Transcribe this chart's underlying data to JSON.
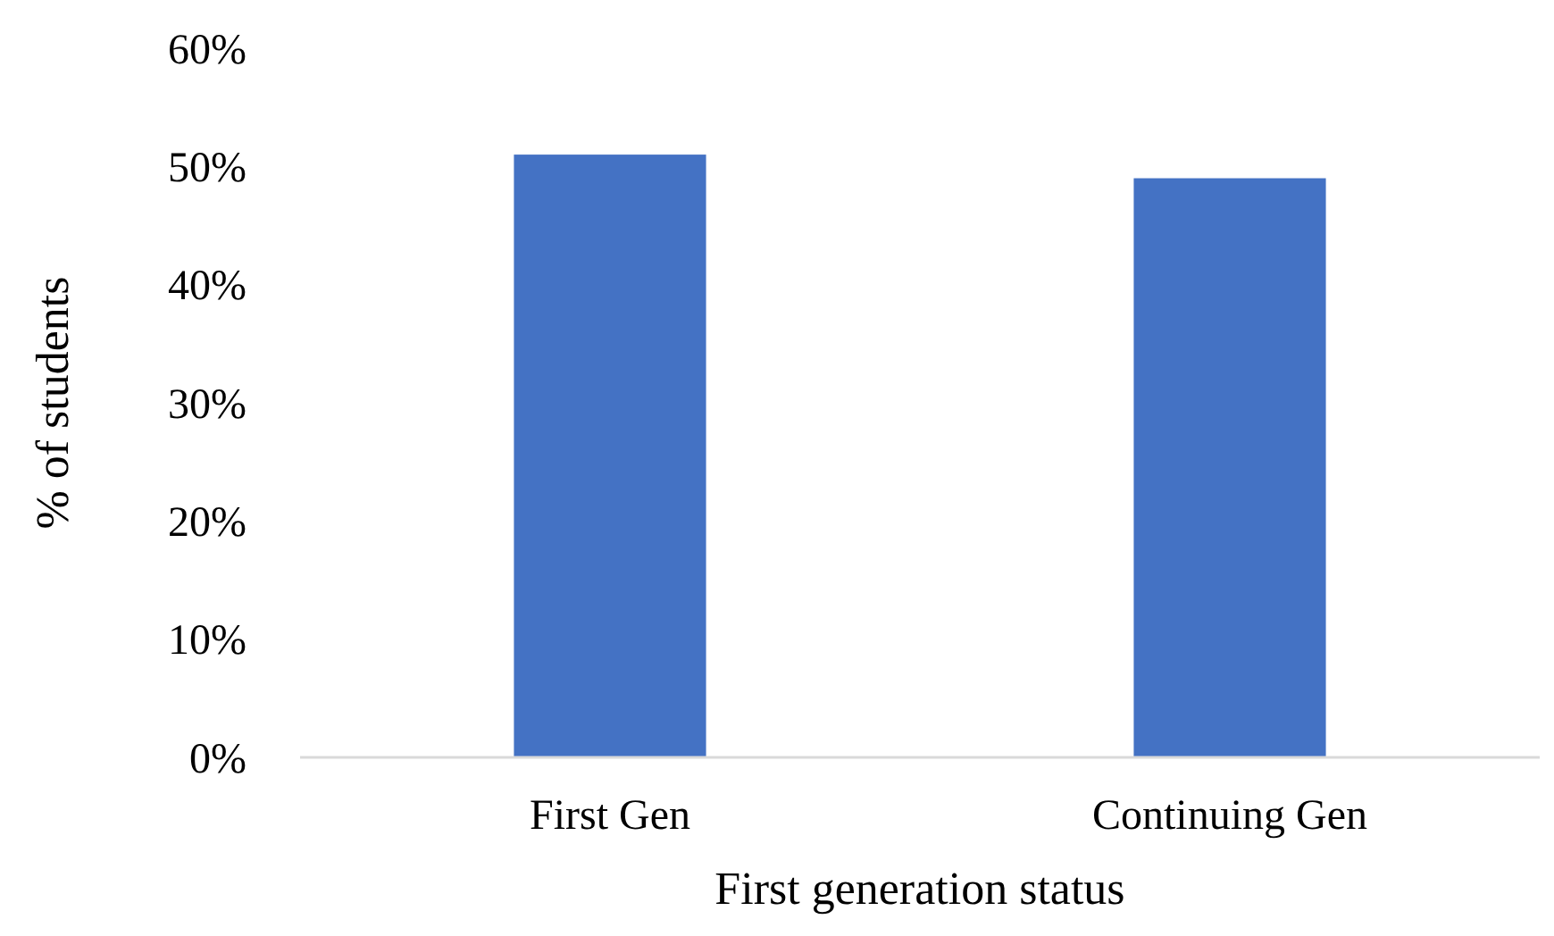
{
  "chart_data": {
    "type": "bar",
    "xlabel": "First generation status",
    "ylabel": "% of students",
    "categories": [
      "First Gen",
      "Continuing Gen"
    ],
    "values": [
      51,
      49
    ],
    "color": "#4472c4",
    "ylim": [
      0,
      60
    ],
    "yticks": [
      {
        "value": 0,
        "label": "0%"
      },
      {
        "value": 10,
        "label": "10%"
      },
      {
        "value": 20,
        "label": "20%"
      },
      {
        "value": 30,
        "label": "30%"
      },
      {
        "value": 40,
        "label": "40%"
      },
      {
        "value": 50,
        "label": "50%"
      },
      {
        "value": 60,
        "label": "60%"
      }
    ],
    "grid": false
  }
}
